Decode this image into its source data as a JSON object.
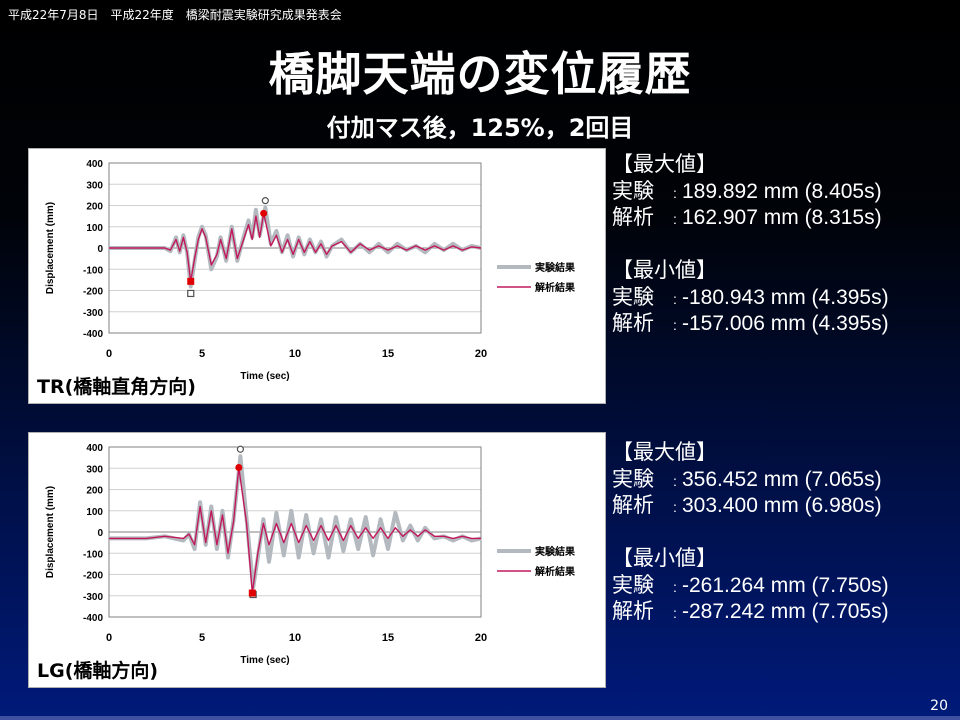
{
  "header": {
    "line": "平成22年7月8日　平成22年度　橋梁耐震実験研究成果発表会"
  },
  "title": "橋脚天端の変位履歴",
  "subtitle": "付加マス後，125%，2回目",
  "page_number": "20",
  "colors": {
    "experiment": "#b3b9be",
    "analysis": "#c2185b",
    "exp_marker": "#505050",
    "ana_marker": "#e00000"
  },
  "legend": {
    "experiment": "実験結果",
    "analysis": "解析結果"
  },
  "panels": [
    {
      "label": "TR(橋軸直角方向)",
      "stats": {
        "max_heading": "【最大値】",
        "max_exp_key": "実験",
        "max_exp_val": "189.892 mm (8.405s)",
        "max_ana_key": "解析",
        "max_ana_val": "162.907 mm (8.315s)",
        "min_heading": "【最小値】",
        "min_exp_key": "実験",
        "min_exp_val": "-180.943 mm (4.395s)",
        "min_ana_key": "解析",
        "min_ana_val": "-157.006 mm (4.395s)"
      }
    },
    {
      "label": "LG(橋軸方向)",
      "stats": {
        "max_heading": "【最大値】",
        "max_exp_key": "実験",
        "max_exp_val": "356.452 mm (7.065s)",
        "max_ana_key": "解析",
        "max_ana_val": "303.400 mm (6.980s)",
        "min_heading": "【最小値】",
        "min_exp_key": "実験",
        "min_exp_val": "-261.264 mm (7.750s)",
        "min_ana_key": "解析",
        "min_ana_val": "-287.242 mm (7.705s)"
      }
    }
  ],
  "chart_data": [
    {
      "type": "line",
      "xlabel": "Time (sec)",
      "ylabel": "Displacement (mm)",
      "xlim": [
        0,
        20
      ],
      "ylim": [
        -400,
        400
      ],
      "xticks": [
        0,
        5,
        10,
        15,
        20
      ],
      "yticks": [
        400,
        300,
        200,
        100,
        0,
        -100,
        -200,
        -300,
        -400
      ],
      "grid": true,
      "legend_position": "right",
      "series": [
        {
          "name": "実験結果",
          "x": [
            0,
            1,
            2,
            2.5,
            3,
            3.3,
            3.6,
            3.8,
            4.0,
            4.2,
            4.395,
            4.6,
            4.8,
            5.0,
            5.2,
            5.5,
            5.8,
            6.0,
            6.3,
            6.6,
            6.9,
            7.2,
            7.5,
            7.7,
            7.9,
            8.1,
            8.405,
            8.7,
            9.0,
            9.3,
            9.6,
            9.9,
            10.2,
            10.5,
            10.8,
            11.1,
            11.4,
            11.7,
            12.0,
            12.5,
            13.0,
            13.5,
            14.0,
            14.5,
            15.0,
            15.5,
            16.0,
            16.5,
            17.0,
            17.5,
            18.0,
            18.5,
            19.0,
            19.5,
            20.0
          ],
          "y": [
            0,
            0,
            0,
            0,
            0,
            -15,
            50,
            -20,
            60,
            -20,
            -181,
            -60,
            50,
            100,
            60,
            -100,
            -40,
            50,
            -60,
            100,
            -60,
            40,
            130,
            50,
            180,
            60,
            190,
            20,
            80,
            -20,
            60,
            -40,
            50,
            -30,
            40,
            -20,
            30,
            -40,
            10,
            40,
            -20,
            20,
            -20,
            20,
            -20,
            20,
            -10,
            10,
            -20,
            20,
            -10,
            20,
            -10,
            10,
            0
          ]
        },
        {
          "name": "解析結果",
          "x": [
            0,
            1,
            2,
            2.5,
            3,
            3.3,
            3.6,
            3.8,
            4.0,
            4.2,
            4.395,
            4.6,
            4.8,
            5.0,
            5.2,
            5.5,
            5.8,
            6.0,
            6.3,
            6.6,
            6.9,
            7.2,
            7.5,
            7.7,
            7.9,
            8.1,
            8.315,
            8.7,
            9.0,
            9.3,
            9.6,
            9.9,
            10.2,
            10.5,
            10.8,
            11.1,
            11.4,
            11.7,
            12.0,
            12.5,
            13.0,
            13.5,
            14.0,
            14.5,
            15.0,
            15.5,
            16.0,
            16.5,
            17.0,
            17.5,
            18.0,
            18.5,
            19.0,
            19.5,
            20.0
          ],
          "y": [
            0,
            0,
            0,
            0,
            0,
            -10,
            40,
            -15,
            50,
            -20,
            -157,
            -50,
            40,
            90,
            50,
            -80,
            -30,
            40,
            -50,
            90,
            -50,
            30,
            110,
            40,
            150,
            50,
            163,
            10,
            60,
            -20,
            40,
            -30,
            40,
            -20,
            30,
            -20,
            20,
            -30,
            10,
            30,
            -20,
            20,
            -10,
            10,
            -10,
            10,
            -10,
            10,
            -10,
            10,
            -10,
            10,
            -10,
            5,
            0
          ]
        }
      ],
      "annotations": [
        {
          "series": "実験結果",
          "kind": "max",
          "x": 8.405,
          "y": 189.892
        },
        {
          "series": "解析結果",
          "kind": "max",
          "x": 8.315,
          "y": 162.907
        },
        {
          "series": "実験結果",
          "kind": "min",
          "x": 4.395,
          "y": -180.943
        },
        {
          "series": "解析結果",
          "kind": "min",
          "x": 4.395,
          "y": -157.006
        }
      ]
    },
    {
      "type": "line",
      "xlabel": "Time (sec)",
      "ylabel": "Displacement (mm)",
      "xlim": [
        0,
        20
      ],
      "ylim": [
        -400,
        400
      ],
      "xticks": [
        0,
        5,
        10,
        15,
        20
      ],
      "yticks": [
        400,
        300,
        200,
        100,
        0,
        -100,
        -200,
        -300,
        -400
      ],
      "grid": true,
      "legend_position": "right",
      "series": [
        {
          "name": "実験結果",
          "x": [
            0,
            1,
            2,
            3,
            4,
            4.3,
            4.6,
            4.9,
            5.2,
            5.5,
            5.8,
            6.1,
            6.4,
            6.7,
            7.065,
            7.4,
            7.75,
            8.0,
            8.3,
            8.6,
            9.0,
            9.4,
            9.8,
            10.2,
            10.6,
            11.0,
            11.4,
            11.8,
            12.2,
            12.6,
            13.0,
            13.4,
            13.8,
            14.2,
            14.6,
            15.0,
            15.4,
            15.8,
            16.2,
            16.6,
            17.0,
            17.5,
            18.0,
            18.5,
            19.0,
            19.5,
            20.0
          ],
          "y": [
            -30,
            -30,
            -30,
            -20,
            -40,
            -10,
            -80,
            140,
            -60,
            120,
            -80,
            100,
            -120,
            60,
            356,
            60,
            -261,
            -120,
            60,
            -140,
            90,
            -110,
            100,
            -120,
            80,
            -100,
            60,
            -120,
            70,
            -90,
            60,
            -80,
            70,
            -110,
            60,
            -80,
            90,
            -40,
            30,
            -40,
            20,
            -30,
            -20,
            -40,
            -20,
            -40,
            -30
          ]
        },
        {
          "name": "解析結果",
          "x": [
            0,
            1,
            2,
            3,
            4,
            4.3,
            4.6,
            4.9,
            5.2,
            5.5,
            5.8,
            6.1,
            6.4,
            6.7,
            6.98,
            7.4,
            7.705,
            8.0,
            8.3,
            8.6,
            9.0,
            9.4,
            9.8,
            10.2,
            10.6,
            11.0,
            11.4,
            11.8,
            12.2,
            12.6,
            13.0,
            13.4,
            13.8,
            14.2,
            14.6,
            15.0,
            15.4,
            15.8,
            16.2,
            16.6,
            17.0,
            17.5,
            18.0,
            18.5,
            19.0,
            19.5,
            20.0
          ],
          "y": [
            -30,
            -30,
            -30,
            -20,
            -30,
            -10,
            -60,
            120,
            -50,
            100,
            -60,
            80,
            -100,
            50,
            303,
            40,
            -287,
            -100,
            40,
            -60,
            40,
            -50,
            40,
            -50,
            30,
            -40,
            30,
            -40,
            30,
            -40,
            30,
            -30,
            20,
            -30,
            20,
            -30,
            20,
            -20,
            10,
            -20,
            10,
            -20,
            -20,
            -30,
            -20,
            -30,
            -30
          ]
        }
      ],
      "annotations": [
        {
          "series": "実験結果",
          "kind": "max",
          "x": 7.065,
          "y": 356.452
        },
        {
          "series": "解析結果",
          "kind": "max",
          "x": 6.98,
          "y": 303.4
        },
        {
          "series": "実験結果",
          "kind": "min",
          "x": 7.75,
          "y": -261.264
        },
        {
          "series": "解析結果",
          "kind": "min",
          "x": 7.705,
          "y": -287.242
        }
      ]
    }
  ]
}
